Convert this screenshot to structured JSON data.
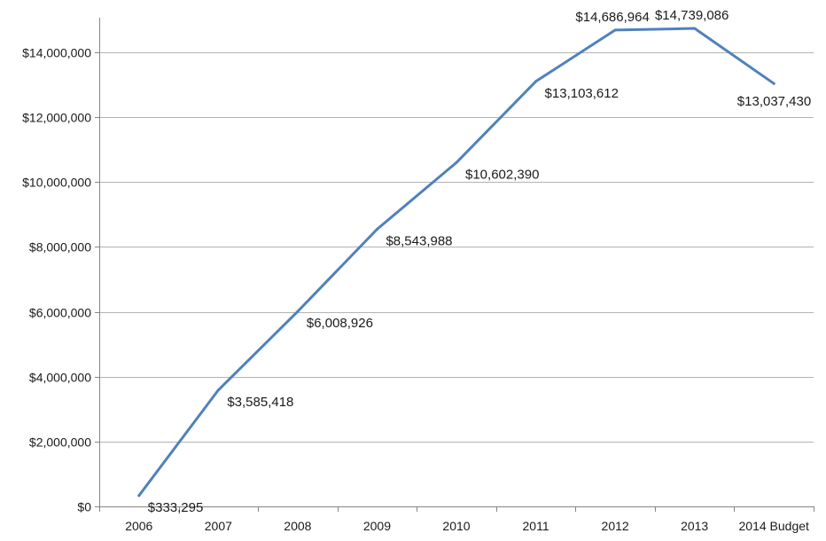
{
  "chart_data": {
    "type": "line",
    "title": "",
    "xlabel": "",
    "ylabel": "",
    "categories": [
      "2006",
      "2007",
      "2008",
      "2009",
      "2010",
      "2011",
      "2012",
      "2013",
      "2014 Budget"
    ],
    "series": [
      {
        "values": [
          333295,
          3585418,
          6008926,
          8543988,
          10602390,
          13103612,
          14686964,
          14739086,
          13037430
        ],
        "data_labels": [
          "$333,295",
          "$3,585,418",
          "$6,008,926",
          "$8,543,988",
          "$10,602,390",
          "$13,103,612",
          "$14,686,964",
          "$14,739,086",
          "$13,037,430"
        ],
        "color": "#4f81bd"
      }
    ],
    "ylim": [
      0,
      14000000
    ],
    "yticks": [
      0,
      2000000,
      4000000,
      6000000,
      8000000,
      10000000,
      12000000,
      14000000
    ],
    "ytick_labels": [
      "$0",
      "$2,000,000",
      "$4,000,000",
      "$6,000,000",
      "$8,000,000",
      "$10,000,000",
      "$12,000,000",
      "$14,000,000"
    ],
    "grid": true,
    "legend": "none"
  }
}
